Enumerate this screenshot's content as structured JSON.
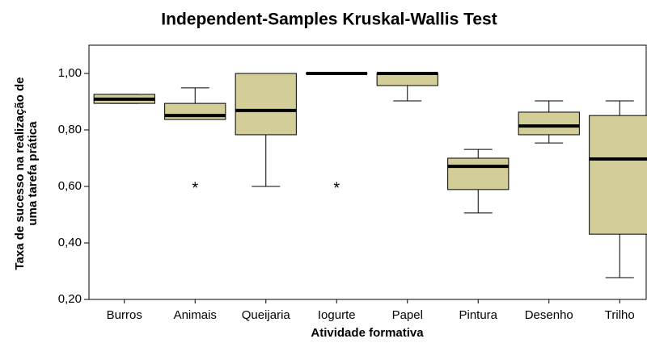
{
  "chart_data": {
    "type": "box",
    "title": "Independent-Samples Kruskal-Wallis Test",
    "xlabel": "Atividade formativa",
    "ylabel": [
      "Taxa de sucesso na realização de",
      "uma tarefa prática"
    ],
    "categories": [
      "Burros",
      "Animais",
      "Queijaria",
      "Iogurte",
      "Papel",
      "Pintura",
      "Desenho",
      "Trilho"
    ],
    "boxes": [
      {
        "min": 0.894,
        "q1": 0.894,
        "median": 0.909,
        "q3": 0.926,
        "max": 0.926,
        "outliers": []
      },
      {
        "min": 0.837,
        "q1": 0.837,
        "median": 0.851,
        "q3": 0.894,
        "max": 0.949,
        "outliers": [
          0.6
        ]
      },
      {
        "min": 0.6,
        "q1": 0.783,
        "median": 0.869,
        "q3": 1.0,
        "max": 1.0,
        "outliers": []
      },
      {
        "min": 1.0,
        "q1": 1.0,
        "median": 1.0,
        "q3": 1.0,
        "max": 1.0,
        "outliers": [
          0.6
        ]
      },
      {
        "min": 0.903,
        "q1": 0.957,
        "median": 1.0,
        "q3": 1.0,
        "max": 1.0,
        "outliers": []
      },
      {
        "min": 0.506,
        "q1": 0.589,
        "median": 0.671,
        "q3": 0.7,
        "max": 0.731,
        "outliers": []
      },
      {
        "min": 0.754,
        "q1": 0.783,
        "median": 0.814,
        "q3": 0.863,
        "max": 0.903,
        "outliers": []
      },
      {
        "min": 0.277,
        "q1": 0.431,
        "median": 0.697,
        "q3": 0.851,
        "max": 0.903,
        "outliers": []
      }
    ],
    "color": "#d3ce97",
    "ylim": [
      0.2,
      1.1
    ],
    "yticks": [
      {
        "value": 0.2,
        "label": "0,20"
      },
      {
        "value": 0.4,
        "label": "0,40"
      },
      {
        "value": 0.6,
        "label": "0,60"
      },
      {
        "value": 0.8,
        "label": "0,80"
      },
      {
        "value": 1.0,
        "label": "1,00"
      }
    ]
  }
}
